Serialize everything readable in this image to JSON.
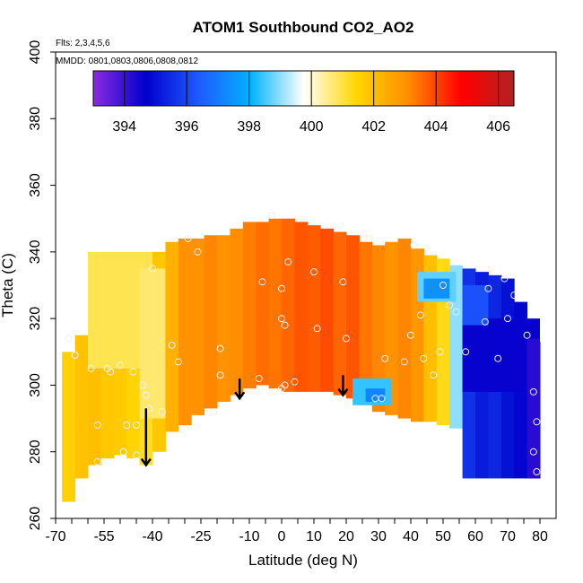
{
  "chart_data": {
    "type": "heatmap",
    "title": "ATOM1 Southbound CO2_AO2",
    "annotations": [
      "Flts: 2,3,4,5,6",
      "MMDD: 0801,0803,0806,0808,0812"
    ],
    "xlabel": "Latitude (deg N)",
    "ylabel": "Theta (C)",
    "xlim": [
      -70,
      80
    ],
    "ylim": [
      260,
      400
    ],
    "x_ticks": [
      -70,
      -55,
      -40,
      -25,
      -10,
      0,
      10,
      20,
      30,
      40,
      50,
      60,
      70,
      80
    ],
    "y_ticks": [
      260,
      280,
      300,
      320,
      340,
      360,
      380,
      400
    ],
    "grid": false,
    "colorbar": {
      "placement": "top",
      "range": [
        393,
        406.5
      ],
      "ticks": [
        394,
        396,
        398,
        400,
        402,
        404,
        406
      ],
      "colors": [
        "#8a2be2",
        "#0000cd",
        "#1e5aff",
        "#00b4ff",
        "#ffffff",
        "#ffd700",
        "#ff8c00",
        "#ff0000",
        "#b22222"
      ]
    },
    "field_columns": [
      {
        "lat": -66,
        "bottom": 265,
        "top": 310,
        "value": 401.6
      },
      {
        "lat": -62,
        "bottom": 272,
        "top": 315,
        "value": 401.9
      },
      {
        "lat": -58,
        "bottom": 276,
        "top": 320,
        "value": 402.0
      },
      {
        "lat": -54,
        "bottom": 278,
        "top": 325,
        "value": 401.8
      },
      {
        "lat": -50,
        "bottom": 279,
        "top": 330,
        "value": 401.7
      },
      {
        "lat": -46,
        "bottom": 278,
        "top": 333,
        "value": 401.5
      },
      {
        "lat": -42,
        "bottom": 276,
        "top": 336,
        "value": 401.2
      },
      {
        "lat": -38,
        "bottom": 280,
        "top": 340,
        "value": 401.8
      },
      {
        "lat": -34,
        "bottom": 286,
        "top": 343,
        "value": 402.3
      },
      {
        "lat": -30,
        "bottom": 288,
        "top": 344,
        "value": 403.0
      },
      {
        "lat": -26,
        "bottom": 291,
        "top": 344,
        "value": 403.0
      },
      {
        "lat": -22,
        "bottom": 293,
        "top": 345,
        "value": 403.2
      },
      {
        "lat": -18,
        "bottom": 295,
        "top": 345,
        "value": 403.0
      },
      {
        "lat": -14,
        "bottom": 297,
        "top": 347,
        "value": 403.1
      },
      {
        "lat": -10,
        "bottom": 299,
        "top": 349,
        "value": 403.3
      },
      {
        "lat": -6,
        "bottom": 300,
        "top": 349,
        "value": 403.5
      },
      {
        "lat": -2,
        "bottom": 299,
        "top": 350,
        "value": 403.4
      },
      {
        "lat": 2,
        "bottom": 298,
        "top": 350,
        "value": 403.6
      },
      {
        "lat": 6,
        "bottom": 298,
        "top": 349,
        "value": 403.8
      },
      {
        "lat": 10,
        "bottom": 298,
        "top": 348,
        "value": 403.7
      },
      {
        "lat": 14,
        "bottom": 298,
        "top": 347,
        "value": 403.9
      },
      {
        "lat": 18,
        "bottom": 297,
        "top": 346,
        "value": 403.6
      },
      {
        "lat": 22,
        "bottom": 296,
        "top": 345,
        "value": 403.8
      },
      {
        "lat": 26,
        "bottom": 294,
        "top": 343,
        "value": 403.4
      },
      {
        "lat": 30,
        "bottom": 292,
        "top": 342,
        "value": 403.2
      },
      {
        "lat": 34,
        "bottom": 291,
        "top": 343,
        "value": 403.0
      },
      {
        "lat": 38,
        "bottom": 290,
        "top": 344,
        "value": 403.2
      },
      {
        "lat": 42,
        "bottom": 289,
        "top": 341,
        "value": 402.9
      },
      {
        "lat": 46,
        "bottom": 289,
        "top": 339,
        "value": 402.0
      },
      {
        "lat": 50,
        "bottom": 288,
        "top": 338,
        "value": 401.3
      },
      {
        "lat": 54,
        "bottom": 287,
        "top": 336,
        "value": 399.0
      },
      {
        "lat": 58,
        "bottom": 272,
        "top": 335,
        "value": 395.6
      },
      {
        "lat": 62,
        "bottom": 272,
        "top": 334,
        "value": 395.2
      },
      {
        "lat": 66,
        "bottom": 272,
        "top": 333,
        "value": 395.4
      },
      {
        "lat": 70,
        "bottom": 272,
        "top": 332,
        "value": 395.0
      },
      {
        "lat": 74,
        "bottom": 272,
        "top": 325,
        "value": 394.8
      },
      {
        "lat": 78,
        "bottom": 272,
        "top": 313,
        "value": 394.6
      }
    ],
    "field_patches": [
      {
        "lat0": -60,
        "lat1": -40,
        "theta0": 305,
        "theta1": 340,
        "value": 400.9
      },
      {
        "lat0": -44,
        "lat1": -36,
        "theta0": 290,
        "theta1": 335,
        "value": 400.7
      },
      {
        "lat0": 22,
        "lat1": 34,
        "theta0": 294,
        "theta1": 302,
        "value": 398.4
      },
      {
        "lat0": 26,
        "lat1": 32,
        "theta0": 295,
        "theta1": 299,
        "value": 397.2
      },
      {
        "lat0": 42,
        "lat1": 54,
        "theta0": 325,
        "theta1": 334,
        "value": 398.7
      },
      {
        "lat0": 44,
        "lat1": 52,
        "theta0": 326,
        "theta1": 332,
        "value": 397.4
      },
      {
        "lat0": 56,
        "lat1": 80,
        "theta0": 298,
        "theta1": 320,
        "value": 394.6
      },
      {
        "lat0": 56,
        "lat1": 64,
        "theta0": 318,
        "theta1": 330,
        "value": 396.2
      },
      {
        "lat0": 76,
        "lat1": 80,
        "theta0": 272,
        "theta1": 314,
        "value": 394.2
      }
    ],
    "sample_points": [
      {
        "lat": -66,
        "theta": 314
      },
      {
        "lat": -64,
        "theta": 309
      },
      {
        "lat": -59,
        "theta": 305
      },
      {
        "lat": -57,
        "theta": 288
      },
      {
        "lat": -57,
        "theta": 277
      },
      {
        "lat": -54,
        "theta": 305
      },
      {
        "lat": -53,
        "theta": 304
      },
      {
        "lat": -50,
        "theta": 306
      },
      {
        "lat": -49,
        "theta": 280
      },
      {
        "lat": -48,
        "theta": 288
      },
      {
        "lat": -46,
        "theta": 304
      },
      {
        "lat": -45,
        "theta": 288
      },
      {
        "lat": -45,
        "theta": 279
      },
      {
        "lat": -43,
        "theta": 300
      },
      {
        "lat": -42,
        "theta": 297
      },
      {
        "lat": -41,
        "theta": 293
      },
      {
        "lat": -40,
        "theta": 335
      },
      {
        "lat": -37,
        "theta": 292
      },
      {
        "lat": -34,
        "theta": 312
      },
      {
        "lat": -32,
        "theta": 307
      },
      {
        "lat": -29,
        "theta": 344
      },
      {
        "lat": -26,
        "theta": 340
      },
      {
        "lat": -21,
        "theta": 292
      },
      {
        "lat": -19,
        "theta": 311
      },
      {
        "lat": -19,
        "theta": 303
      },
      {
        "lat": -7,
        "theta": 302
      },
      {
        "lat": -6,
        "theta": 331
      },
      {
        "lat": -3,
        "theta": 351
      },
      {
        "lat": 0,
        "theta": 329
      },
      {
        "lat": 0,
        "theta": 320
      },
      {
        "lat": 1,
        "theta": 318
      },
      {
        "lat": 0,
        "theta": 299
      },
      {
        "lat": 1,
        "theta": 300
      },
      {
        "lat": 2,
        "theta": 337
      },
      {
        "lat": 4,
        "theta": 301
      },
      {
        "lat": 10,
        "theta": 334
      },
      {
        "lat": 11,
        "theta": 317
      },
      {
        "lat": 19,
        "theta": 331
      },
      {
        "lat": 20,
        "theta": 314
      },
      {
        "lat": 27,
        "theta": 344
      },
      {
        "lat": 29,
        "theta": 296
      },
      {
        "lat": 31,
        "theta": 296
      },
      {
        "lat": 32,
        "theta": 308
      },
      {
        "lat": 38,
        "theta": 307
      },
      {
        "lat": 40,
        "theta": 315
      },
      {
        "lat": 41,
        "theta": 342
      },
      {
        "lat": 43,
        "theta": 321
      },
      {
        "lat": 44,
        "theta": 308
      },
      {
        "lat": 47,
        "theta": 303
      },
      {
        "lat": 49,
        "theta": 310
      },
      {
        "lat": 50,
        "theta": 330
      },
      {
        "lat": 52,
        "theta": 324
      },
      {
        "lat": 54,
        "theta": 322
      },
      {
        "lat": 57,
        "theta": 310
      },
      {
        "lat": 63,
        "theta": 319
      },
      {
        "lat": 64,
        "theta": 329
      },
      {
        "lat": 67,
        "theta": 308
      },
      {
        "lat": 69,
        "theta": 332
      },
      {
        "lat": 70,
        "theta": 320
      },
      {
        "lat": 72,
        "theta": 327
      },
      {
        "lat": 76,
        "theta": 315
      },
      {
        "lat": 78,
        "theta": 298
      },
      {
        "lat": 79,
        "theta": 289
      },
      {
        "lat": 78,
        "theta": 280
      },
      {
        "lat": 79,
        "theta": 274
      }
    ],
    "arrows": [
      {
        "lat": -42,
        "theta_top": 293,
        "theta_tip": 276
      },
      {
        "lat": -13,
        "theta_top": 302,
        "theta_tip": 296
      },
      {
        "lat": 19,
        "theta_top": 303,
        "theta_tip": 297
      }
    ]
  }
}
